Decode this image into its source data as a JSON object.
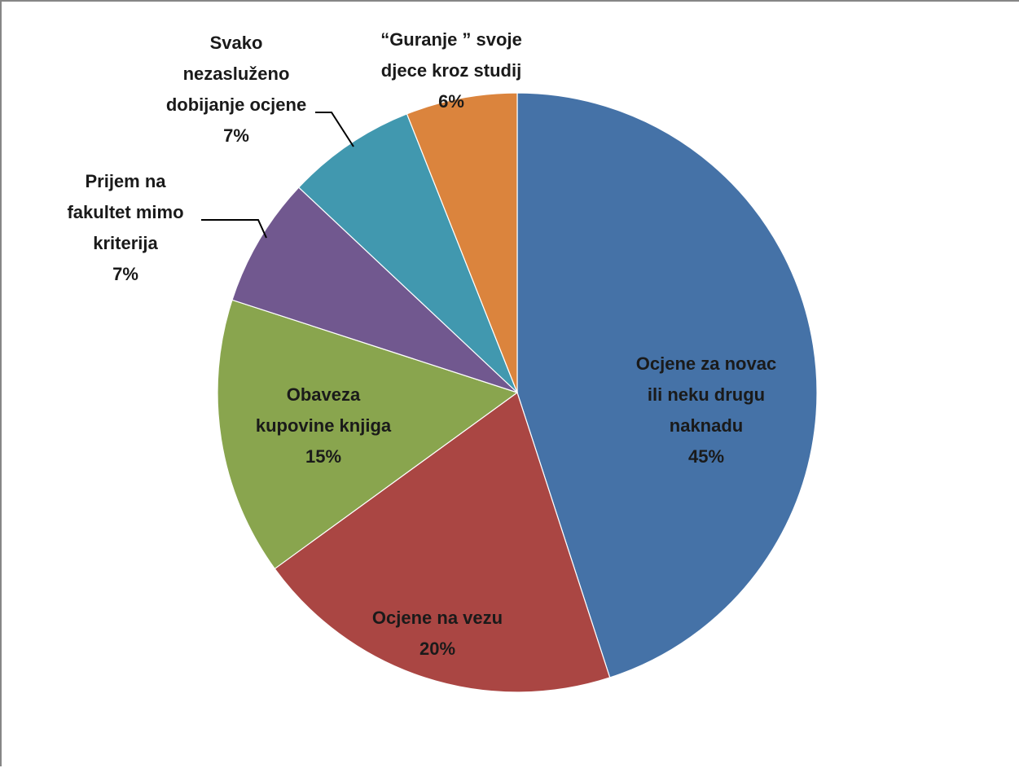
{
  "chart_data": {
    "type": "pie",
    "title": "",
    "start": "top",
    "direction": "clockwise",
    "slices": [
      {
        "label_lines": [
          "Ocjene za novac",
          "ili neku drugu",
          "naknadu"
        ],
        "percent_label": "45%",
        "value": 45,
        "color": "#4572A7"
      },
      {
        "label_lines": [
          "Ocjene na vezu"
        ],
        "percent_label": "20%",
        "value": 20,
        "color": "#AA4643"
      },
      {
        "label_lines": [
          "Obaveza",
          "kupovine knjiga"
        ],
        "percent_label": "15%",
        "value": 15,
        "color": "#89A54E"
      },
      {
        "label_lines": [
          "Prijem na",
          "fakultet mimo",
          "kriterija"
        ],
        "percent_label": "7%",
        "value": 7,
        "color": "#71588F"
      },
      {
        "label_lines": [
          "Svako",
          "nezasluženo",
          "dobijanje ocjene"
        ],
        "percent_label": "7%",
        "value": 7,
        "color": "#4198AF"
      },
      {
        "label_lines": [
          "“Guranje ” svoje",
          "djece  kroz studij"
        ],
        "percent_label": "6%",
        "value": 6,
        "color": "#DB843D"
      }
    ],
    "legend": "none",
    "data_labels": "category and percentage"
  }
}
